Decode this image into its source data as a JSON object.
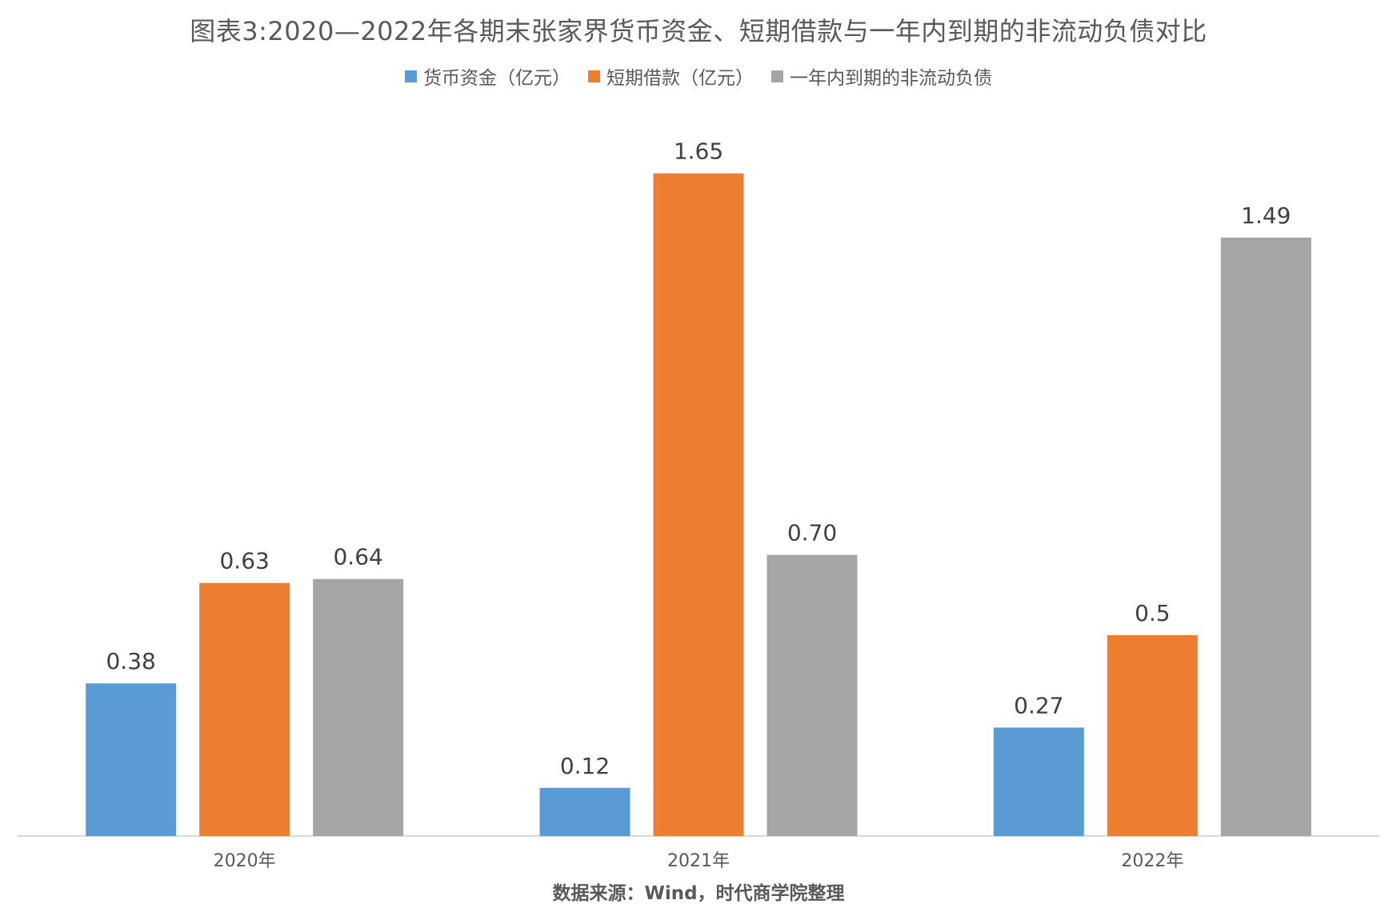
{
  "chart_data": {
    "type": "bar",
    "title": "图表3:2020—2022年各期末张家界货币资金、短期借款与一年内到期的非流动负债对比",
    "categories": [
      "2020年",
      "2021年",
      "2022年"
    ],
    "series": [
      {
        "name": "货币资金（亿元）",
        "color": "#5B9BD5",
        "values": [
          0.38,
          0.12,
          0.27
        ],
        "labels": [
          "0.38",
          "0.12",
          "0.27"
        ]
      },
      {
        "name": "短期借款（亿元）",
        "color": "#ED7D31",
        "values": [
          0.63,
          1.65,
          0.5
        ],
        "labels": [
          "0.63",
          "1.65",
          "0.5"
        ]
      },
      {
        "name": "一年内到期的非流动负债",
        "color": "#A5A5A5",
        "values": [
          0.64,
          0.7,
          1.49
        ],
        "labels": [
          "0.64",
          "0.70",
          "1.49"
        ]
      }
    ],
    "xlabel": "",
    "ylabel": "",
    "ylim": [
      0,
      1.8
    ],
    "grid": false,
    "legend_position": "top"
  },
  "source_note": "数据来源：Wind，时代商学院整理",
  "colors": {
    "axis": "#D9D9D9",
    "text": "#595959",
    "data_label": "#404040"
  }
}
